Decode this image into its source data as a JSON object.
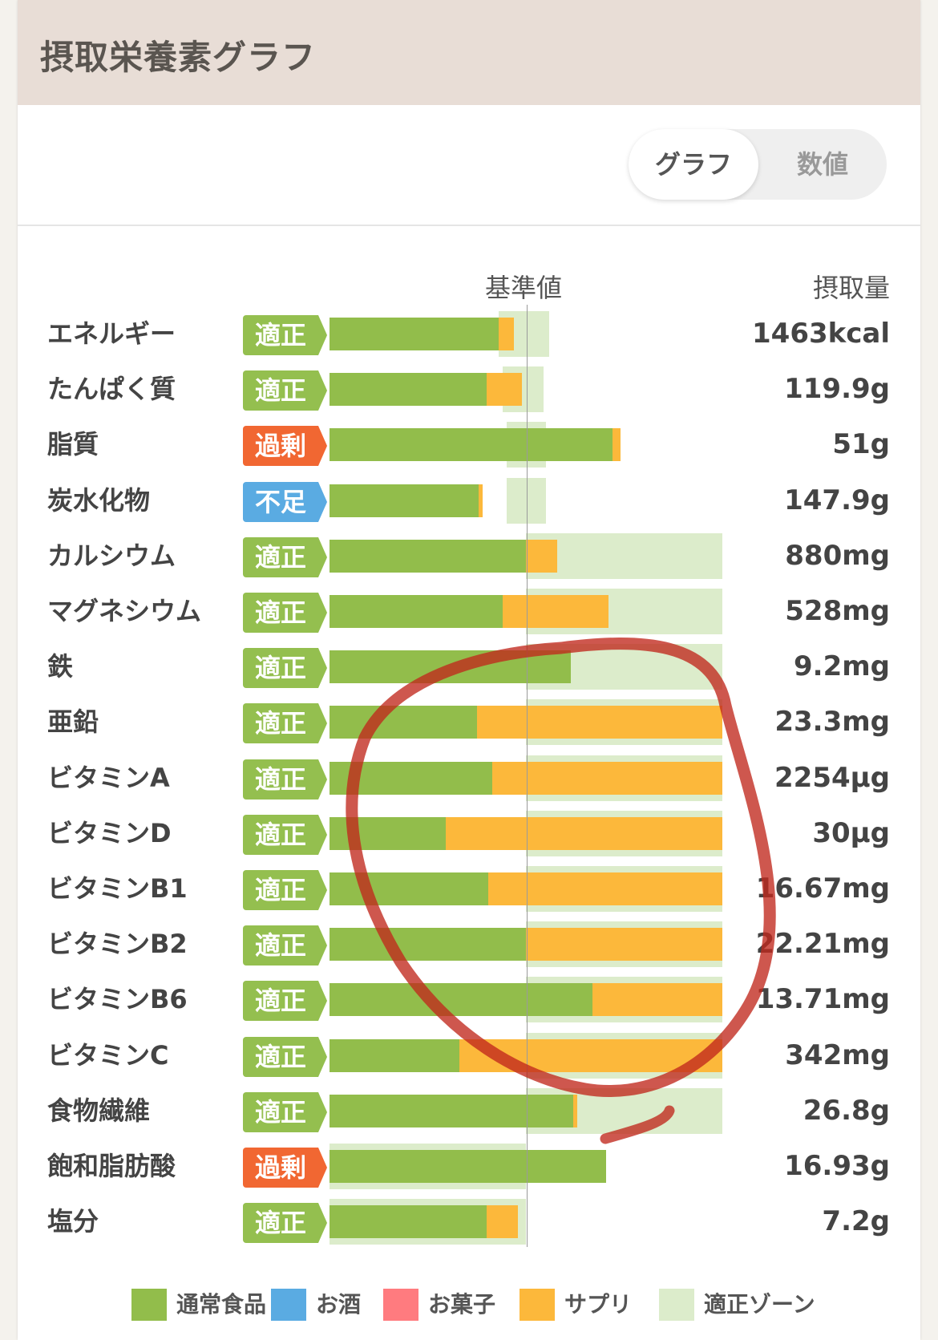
{
  "header": {
    "title": "摂取栄養素グラフ"
  },
  "toggle": {
    "graph_label": "グラフ",
    "number_label": "数値"
  },
  "columns": {
    "standard": "基準値",
    "intake": "摂取量"
  },
  "colors": {
    "food": "#92bd4b",
    "alcohol": "#5aabe2",
    "snack": "#ff7b7f",
    "supplement": "#fcb83b",
    "zone": "#dceccb",
    "status_ok": "#94bf4f",
    "status_over": "#f16732",
    "status_under": "#5aabe2",
    "annotation": "#c0281c"
  },
  "nutrients": [
    {
      "name": "エネルギー",
      "status": "適正",
      "status_type": "ok",
      "intake": "1463kcal",
      "food_pct": 86,
      "supp_pct": 8,
      "zone_start_pct": 86,
      "zone_end_pct": 112
    },
    {
      "name": "たんぱく質",
      "status": "適正",
      "status_type": "ok",
      "intake": "119.9g",
      "food_pct": 80,
      "supp_pct": 18,
      "zone_start_pct": 88,
      "zone_end_pct": 109
    },
    {
      "name": "脂質",
      "status": "過剰",
      "status_type": "over",
      "intake": "51g",
      "food_pct": 144,
      "supp_pct": 4,
      "zone_start_pct": 90,
      "zone_end_pct": 110
    },
    {
      "name": "炭水化物",
      "status": "不足",
      "status_type": "under",
      "intake": "147.9g",
      "food_pct": 76,
      "supp_pct": 2,
      "zone_start_pct": 90,
      "zone_end_pct": 110
    },
    {
      "name": "カルシウム",
      "status": "適正",
      "status_type": "ok",
      "intake": "880mg",
      "food_pct": 100,
      "supp_pct": 16,
      "zone_start_pct": 100,
      "zone_end_pct": 200
    },
    {
      "name": "マグネシウム",
      "status": "適正",
      "status_type": "ok",
      "intake": "528mg",
      "food_pct": 88,
      "supp_pct": 54,
      "zone_start_pct": 100,
      "zone_end_pct": 200
    },
    {
      "name": "鉄",
      "status": "適正",
      "status_type": "ok",
      "intake": "9.2mg",
      "food_pct": 123,
      "supp_pct": 0,
      "zone_start_pct": 100,
      "zone_end_pct": 200
    },
    {
      "name": "亜鉛",
      "status": "適正",
      "status_type": "ok",
      "intake": "23.3mg",
      "food_pct": 75,
      "supp_pct": 125,
      "zone_start_pct": 100,
      "zone_end_pct": 200
    },
    {
      "name": "ビタミンA",
      "status": "適正",
      "status_type": "ok",
      "intake": "2254µg",
      "food_pct": 83,
      "supp_pct": 117,
      "zone_start_pct": 100,
      "zone_end_pct": 200
    },
    {
      "name": "ビタミンD",
      "status": "適正",
      "status_type": "ok",
      "intake": "30µg",
      "food_pct": 59,
      "supp_pct": 141,
      "zone_start_pct": 100,
      "zone_end_pct": 200
    },
    {
      "name": "ビタミンB1",
      "status": "適正",
      "status_type": "ok",
      "intake": "16.67mg",
      "food_pct": 81,
      "supp_pct": 119,
      "zone_start_pct": 100,
      "zone_end_pct": 200
    },
    {
      "name": "ビタミンB2",
      "status": "適正",
      "status_type": "ok",
      "intake": "22.21mg",
      "food_pct": 100,
      "supp_pct": 100,
      "zone_start_pct": 100,
      "zone_end_pct": 200
    },
    {
      "name": "ビタミンB6",
      "status": "適正",
      "status_type": "ok",
      "intake": "13.71mg",
      "food_pct": 134,
      "supp_pct": 66,
      "zone_start_pct": 100,
      "zone_end_pct": 200
    },
    {
      "name": "ビタミンC",
      "status": "適正",
      "status_type": "ok",
      "intake": "342mg",
      "food_pct": 66,
      "supp_pct": 134,
      "zone_start_pct": 100,
      "zone_end_pct": 200
    },
    {
      "name": "食物繊維",
      "status": "適正",
      "status_type": "ok",
      "intake": "26.8g",
      "food_pct": 124,
      "supp_pct": 2,
      "zone_start_pct": 100,
      "zone_end_pct": 200
    },
    {
      "name": "飽和脂肪酸",
      "status": "過剰",
      "status_type": "over",
      "intake": "16.93g",
      "food_pct": 141,
      "supp_pct": 0,
      "zone_start_pct": 0,
      "zone_end_pct": 100
    },
    {
      "name": "塩分",
      "status": "適正",
      "status_type": "ok",
      "intake": "7.2g",
      "food_pct": 80,
      "supp_pct": 16,
      "zone_start_pct": 0,
      "zone_end_pct": 100
    }
  ],
  "legend": [
    {
      "label": "通常食品",
      "color": "#92bd4b"
    },
    {
      "label": "お酒",
      "color": "#5aabe2"
    },
    {
      "label": "お菓子",
      "color": "#ff7b7f"
    },
    {
      "label": "サプリ",
      "color": "#fcb83b"
    },
    {
      "label": "適正ゾーン",
      "color": "#dceccb"
    }
  ]
}
